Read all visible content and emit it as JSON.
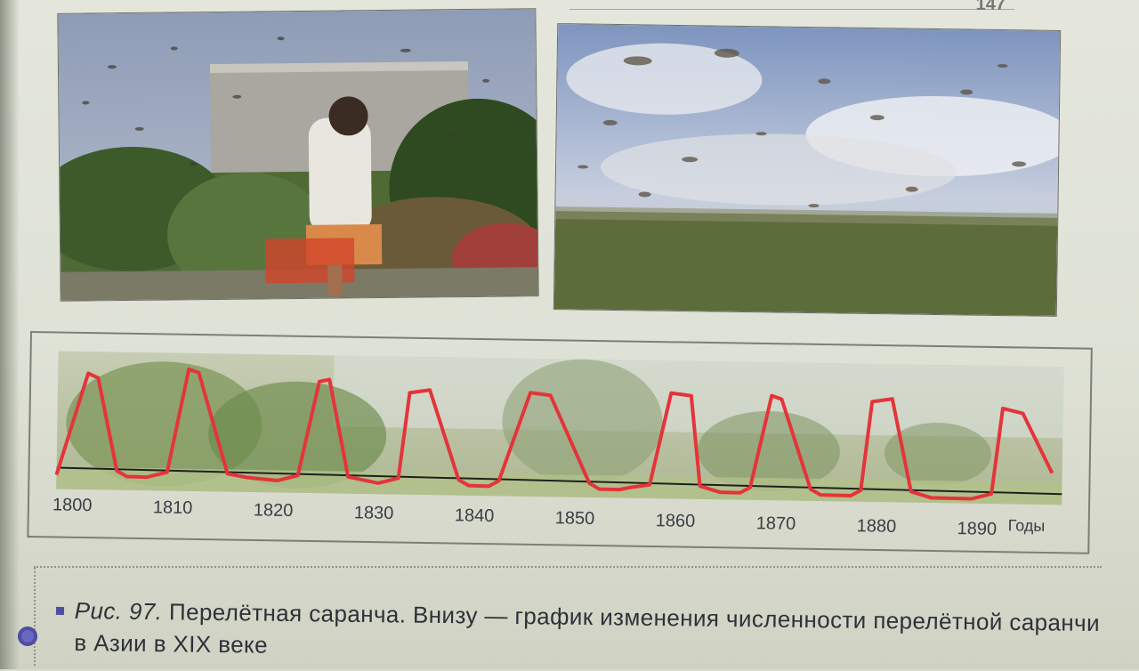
{
  "page": {
    "number": "147"
  },
  "photos": [
    {
      "alt": "Человек среди стаи саранчи"
    },
    {
      "alt": "Стая саранчи в небе"
    }
  ],
  "chart_data": {
    "type": "line",
    "title": "",
    "xlabel": "Годы",
    "ylabel": "",
    "x_ticks": [
      "1800",
      "1810",
      "1820",
      "1830",
      "1840",
      "1850",
      "1860",
      "1870",
      "1880",
      "1890"
    ],
    "xlim": [
      1800,
      1900
    ],
    "grid": false,
    "legend": "none",
    "line_color": "#e4343a",
    "baseline_color": "#1f1f1f",
    "series": [
      {
        "x": [
          1800,
          1803,
          1804,
          1806,
          1807,
          1809,
          1811,
          1813,
          1814,
          1817,
          1819,
          1822,
          1824,
          1826,
          1827,
          1829,
          1832,
          1834,
          1835,
          1837,
          1840,
          1841,
          1843,
          1844,
          1847,
          1849,
          1853,
          1854,
          1856,
          1857,
          1859,
          1861,
          1863,
          1864,
          1866,
          1868,
          1869,
          1871,
          1872,
          1875,
          1876,
          1879,
          1880,
          1881,
          1883,
          1885,
          1887,
          1891,
          1893,
          1894,
          1896,
          1899
        ],
        "y": [
          0.0,
          0.92,
          0.88,
          0.05,
          0.0,
          0.0,
          0.05,
          0.98,
          0.95,
          0.05,
          0.02,
          0.0,
          0.05,
          0.9,
          0.92,
          0.05,
          0.0,
          0.05,
          0.82,
          0.85,
          0.05,
          0.0,
          0.0,
          0.05,
          0.85,
          0.83,
          0.05,
          0.0,
          0.0,
          0.02,
          0.05,
          0.88,
          0.86,
          0.05,
          0.0,
          0.0,
          0.05,
          0.88,
          0.85,
          0.05,
          0.0,
          0.0,
          0.05,
          0.85,
          0.88,
          0.05,
          0.0,
          0.0,
          0.05,
          0.82,
          0.78,
          0.25
        ]
      }
    ]
  },
  "caption": {
    "figure_label": "Рис. 97.",
    "text": "Перелётная саранча. Внизу — график изменения численности перелётной саранчи в Азии в XIX веке"
  }
}
